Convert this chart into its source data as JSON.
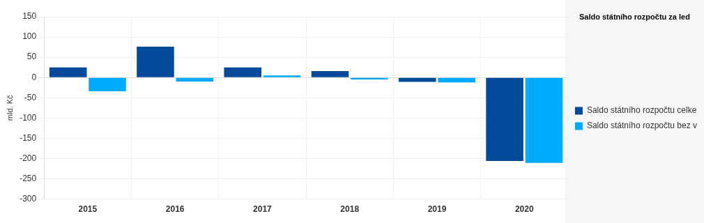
{
  "chart_data": {
    "type": "bar",
    "title": "Saldo státního rozpočtu za led",
    "ylabel": "mld. Kč",
    "categories": [
      "2015",
      "2016",
      "2017",
      "2018",
      "2019",
      "2020"
    ],
    "series": [
      {
        "name": "Saldo státního rozpočtu celke",
        "color": "#034a9a",
        "values": [
          25,
          76,
          25,
          16,
          -11,
          -206
        ]
      },
      {
        "name": "Saldo státního rozpočtu bez v",
        "color": "#00aaff",
        "values": [
          -34,
          -10,
          5,
          -5,
          -12,
          -211
        ]
      }
    ],
    "ylim": [
      -300,
      150
    ],
    "yticks": [
      -300,
      -250,
      -200,
      -150,
      -100,
      -50,
      0,
      50,
      100,
      150
    ],
    "grid": true,
    "legend": "right"
  }
}
